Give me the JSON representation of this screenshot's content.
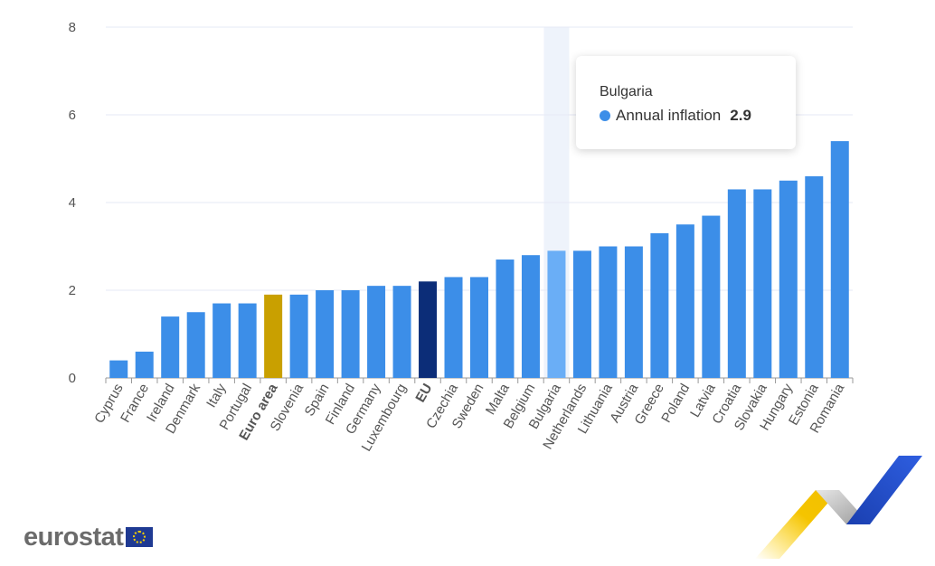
{
  "chart_data": {
    "type": "bar",
    "categories": [
      "Cyprus",
      "France",
      "Ireland",
      "Denmark",
      "Italy",
      "Portugal",
      "Euro area",
      "Slovenia",
      "Spain",
      "Finland",
      "Germany",
      "Luxembourg",
      "EU",
      "Czechia",
      "Sweden",
      "Malta",
      "Belgium",
      "Bulgaria",
      "Netherlands",
      "Lithuania",
      "Austria",
      "Greece",
      "Poland",
      "Latvia",
      "Croatia",
      "Slovakia",
      "Hungary",
      "Estonia",
      "Romania"
    ],
    "series": [
      {
        "name": "Annual inflation",
        "values": [
          0.4,
          0.6,
          1.4,
          1.5,
          1.7,
          1.7,
          1.9,
          1.9,
          2.0,
          2.0,
          2.1,
          2.1,
          2.2,
          2.3,
          2.3,
          2.7,
          2.8,
          2.9,
          2.9,
          3.0,
          3.0,
          3.3,
          3.5,
          3.7,
          4.3,
          4.3,
          4.5,
          4.6,
          5.4
        ]
      }
    ],
    "ylim": [
      0,
      8
    ],
    "yticks": [
      0,
      2,
      4,
      6,
      8
    ],
    "grid": true,
    "bold_categories": [
      "Euro area",
      "EU"
    ],
    "colors": {
      "default": "#3c8ee8",
      "Euro area": "#c9a000",
      "EU": "#0c2d78",
      "Bulgaria": "#6aaef6",
      "highlight_band": "#eef3fb"
    },
    "highlighted_category": "Bulgaria"
  },
  "tooltip": {
    "title": "Bulgaria",
    "series_label": "Annual inflation",
    "value": "2.9"
  },
  "logo": {
    "text": "eurostat",
    "icon": "eu-flag-icon"
  }
}
